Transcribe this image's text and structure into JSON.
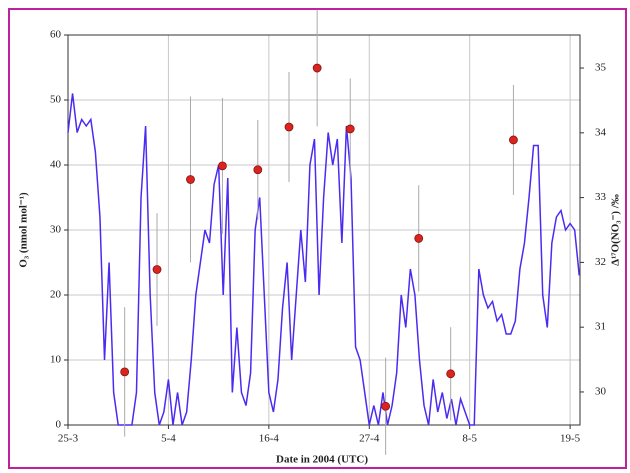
{
  "chart_data": {
    "type": "line",
    "xlabel": "Date in 2004 (UTC)",
    "ylabel": "O₃ (nmol mol⁻¹)",
    "y2label": "Δ¹⁷O(NO₃⁻) /‰",
    "xlim": [
      "2004-03-25T00:00",
      "2004-05-20T02:00"
    ],
    "xticks": [
      {
        "value": "2004-03-25T00:00",
        "label": "25-3"
      },
      {
        "value": "2004-04-05T00:00",
        "label": "5-4"
      },
      {
        "value": "2004-04-16T00:00",
        "label": "16-4"
      },
      {
        "value": "2004-04-27T00:00",
        "label": "27-4"
      },
      {
        "value": "2004-05-08T00:00",
        "label": "8-5"
      },
      {
        "value": "2004-05-19T00:00",
        "label": "19-5"
      }
    ],
    "ylim": [
      0,
      60
    ],
    "yticks": [
      0,
      10,
      20,
      30,
      40,
      50,
      60
    ],
    "y2lim": [
      29.49,
      35.51
    ],
    "y2ticks": [
      30,
      31,
      32,
      33,
      34,
      35
    ],
    "grid": true,
    "series": [
      {
        "color": "#4b2bf2",
        "x": [
          "2004-03-25T00:00",
          "2004-03-25T12:00",
          "2004-03-26T00:00",
          "2004-03-26T12:00",
          "2004-03-27T00:00",
          "2004-03-27T12:00",
          "2004-03-28T00:00",
          "2004-03-28T12:00",
          "2004-03-29T00:00",
          "2004-03-29T12:00",
          "2004-03-30T00:00",
          "2004-03-30T12:00",
          "2004-03-31T00:00",
          "2004-03-31T12:00",
          "2004-04-01T00:00",
          "2004-04-01T12:00",
          "2004-04-02T00:00",
          "2004-04-02T12:00",
          "2004-04-03T00:00",
          "2004-04-03T12:00",
          "2004-04-04T00:00",
          "2004-04-04T12:00",
          "2004-04-05T00:00",
          "2004-04-05T12:00",
          "2004-04-06T00:00",
          "2004-04-06T12:00",
          "2004-04-07T00:00",
          "2004-04-07T12:00",
          "2004-04-08T00:00",
          "2004-04-08T12:00",
          "2004-04-09T00:00",
          "2004-04-09T12:00",
          "2004-04-10T00:00",
          "2004-04-10T12:00",
          "2004-04-11T00:00",
          "2004-04-11T12:00",
          "2004-04-12T00:00",
          "2004-04-12T12:00",
          "2004-04-13T00:00",
          "2004-04-13T12:00",
          "2004-04-14T00:00",
          "2004-04-14T12:00",
          "2004-04-15T00:00",
          "2004-04-15T12:00",
          "2004-04-16T00:00",
          "2004-04-16T12:00",
          "2004-04-17T00:00",
          "2004-04-17T12:00",
          "2004-04-18T00:00",
          "2004-04-18T12:00",
          "2004-04-19T00:00",
          "2004-04-19T12:00",
          "2004-04-20T00:00",
          "2004-04-20T12:00",
          "2004-04-21T00:00",
          "2004-04-21T12:00",
          "2004-04-22T00:00",
          "2004-04-22T12:00",
          "2004-04-23T00:00",
          "2004-04-23T12:00",
          "2004-04-24T00:00",
          "2004-04-24T12:00",
          "2004-04-25T00:00",
          "2004-04-25T12:00",
          "2004-04-26T00:00",
          "2004-04-26T12:00",
          "2004-04-27T00:00",
          "2004-04-27T12:00",
          "2004-04-28T00:00",
          "2004-04-28T12:00",
          "2004-04-29T00:00",
          "2004-04-29T12:00",
          "2004-04-30T00:00",
          "2004-04-30T12:00",
          "2004-05-01T00:00",
          "2004-05-01T12:00",
          "2004-05-02T00:00",
          "2004-05-02T12:00",
          "2004-05-03T00:00",
          "2004-05-03T12:00",
          "2004-05-04T00:00",
          "2004-05-04T12:00",
          "2004-05-05T00:00",
          "2004-05-05T12:00",
          "2004-05-06T00:00",
          "2004-05-06T12:00",
          "2004-05-07T00:00",
          "2004-05-07T12:00",
          "2004-05-08T00:00",
          "2004-05-08T12:00",
          "2004-05-09T00:00",
          "2004-05-09T12:00",
          "2004-05-10T00:00",
          "2004-05-10T12:00",
          "2004-05-11T00:00",
          "2004-05-11T12:00",
          "2004-05-12T00:00",
          "2004-05-12T12:00",
          "2004-05-13T00:00",
          "2004-05-13T12:00",
          "2004-05-14T00:00",
          "2004-05-14T12:00",
          "2004-05-15T00:00",
          "2004-05-15T12:00",
          "2004-05-16T00:00",
          "2004-05-16T12:00",
          "2004-05-17T00:00",
          "2004-05-17T12:00",
          "2004-05-18T00:00",
          "2004-05-18T12:00",
          "2004-05-19T00:00",
          "2004-05-19T12:00",
          "2004-05-20T00:00"
        ],
        "values": [
          45,
          51,
          45,
          47,
          46,
          47,
          42,
          32,
          10,
          25,
          5,
          0,
          0,
          0,
          0,
          5,
          35,
          46,
          20,
          5,
          0,
          2,
          7,
          0,
          5,
          0,
          2,
          10,
          20,
          25,
          30,
          28,
          37,
          40,
          20,
          38,
          5,
          15,
          5,
          3,
          8,
          30,
          35,
          20,
          5,
          2,
          7,
          18,
          25,
          10,
          20,
          30,
          22,
          40,
          44,
          20,
          35,
          45,
          40,
          44,
          28,
          46,
          38,
          12,
          10,
          5,
          0,
          3,
          0,
          5,
          0,
          3,
          8,
          20,
          15,
          24,
          20,
          10,
          3,
          0,
          7,
          2,
          5,
          1,
          4,
          0,
          4,
          2,
          0,
          0,
          24,
          20,
          18,
          19,
          16,
          17,
          14,
          14,
          16,
          24,
          28,
          35,
          43,
          43,
          20,
          15,
          28,
          32,
          33,
          30,
          31,
          30,
          23
        ]
      },
      {
        "type": "scatter",
        "axis": "y2",
        "color": "#d8251f",
        "x": [
          "2004-03-31T05:00",
          "2004-04-03T18:00",
          "2004-04-07T10:00",
          "2004-04-10T22:00",
          "2004-04-14T19:00",
          "2004-04-18T05:00",
          "2004-04-21T07:00",
          "2004-04-24T22:00",
          "2004-04-28T19:00",
          "2004-05-02T10:00",
          "2004-05-05T22:00",
          "2004-05-12T19:00"
        ],
        "values": [
          30.31,
          31.89,
          33.28,
          33.49,
          33.43,
          34.09,
          35.0,
          34.06,
          29.78,
          32.37,
          30.28,
          33.89
        ],
        "errors": [
          1.0,
          0.87,
          1.28,
          1.05,
          0.77,
          0.85,
          0.9,
          0.78,
          0.75,
          0.82,
          0.72,
          0.85
        ]
      }
    ]
  }
}
